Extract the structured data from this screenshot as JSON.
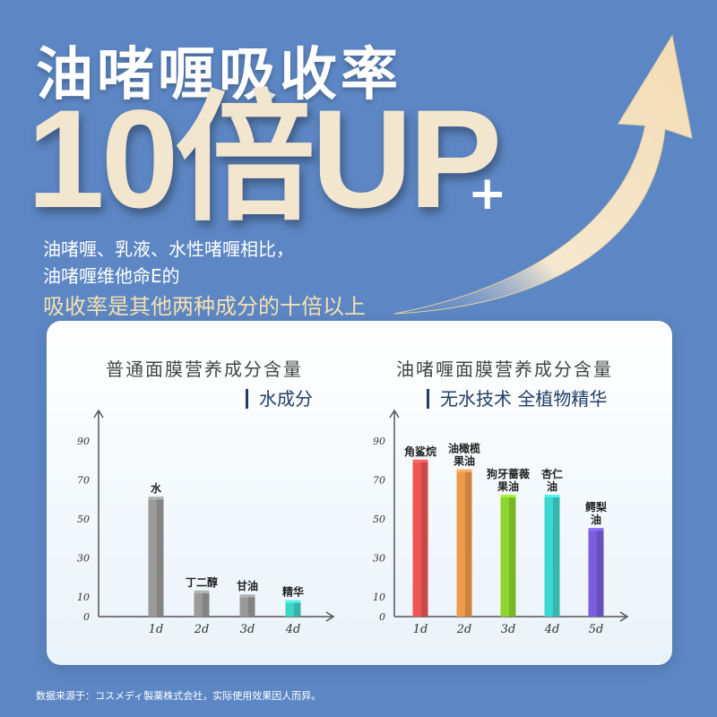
{
  "headline": "油啫喱吸收率",
  "big_text": "10倍UP",
  "big_plus": "+",
  "desc": {
    "line1": "油啫喱、乳液、水性啫喱相比，",
    "line2": "油啫喱维他命E的",
    "line3": "吸收率是其他两种成分的十倍以上"
  },
  "colors": {
    "background": "#5d87c4",
    "accent": "#f4e0b0"
  },
  "footnote": "数据来源于：コスメディ製薬株式会社，实际使用效果因人而异。",
  "chart_data": [
    {
      "type": "bar",
      "title": "普通面膜营养成分含量",
      "tag": "水成分",
      "categories": [
        "1d",
        "2d",
        "3d",
        "4d"
      ],
      "bar_labels": [
        "水",
        "丁二醇",
        "甘油",
        "精华"
      ],
      "values": [
        60,
        12,
        10,
        7
      ],
      "ylim": [
        0,
        100
      ],
      "yticks": [
        0,
        10,
        30,
        50,
        70,
        90
      ],
      "colors": [
        "#9a9a9a",
        "#9a9a9a",
        "#9a9a9a",
        "#3fd4c8"
      ]
    },
    {
      "type": "bar",
      "title": "油啫喱面膜营养成分含量",
      "tag": "无水技术 全植物精华",
      "categories": [
        "1d",
        "2d",
        "3d",
        "4d",
        "5d"
      ],
      "bar_labels": [
        "角鲨烷",
        "油橄榄\n果油",
        "狗牙蔷薇\n果油",
        "杏仁\n油",
        "鳄梨\n油"
      ],
      "values": [
        79,
        74,
        61,
        61,
        44
      ],
      "ylim": [
        0,
        100
      ],
      "yticks": [
        0,
        10,
        30,
        50,
        70,
        90
      ],
      "colors": [
        "#ee5555",
        "#ef9a4a",
        "#8ed62e",
        "#3ed7cf",
        "#7a5ee0"
      ]
    }
  ]
}
